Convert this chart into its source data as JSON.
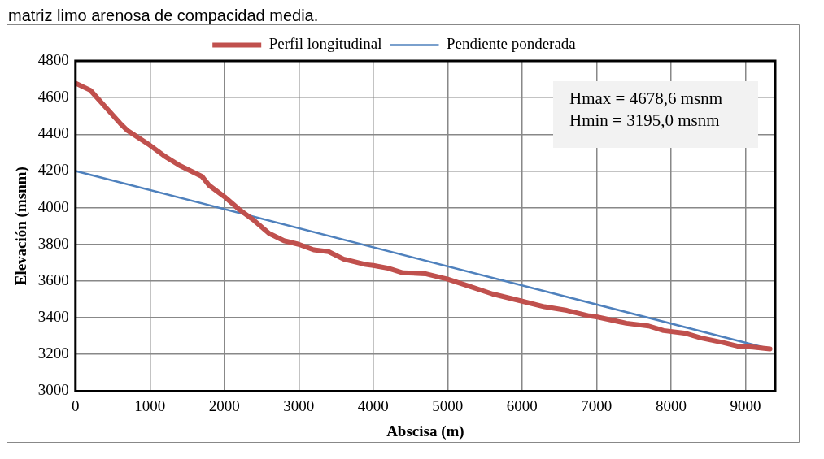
{
  "chart_data": {
    "type": "line",
    "annotations": [
      "matriz limo arenosa de compacidad media.",
      "Hmax = 4678,6 msnm",
      "Hmin = 3195,0 msnm"
    ],
    "xlabel": "Abscisa (m)",
    "ylabel": "Elevación (msnm)",
    "series": [
      {
        "name": "Perfil longitudinal",
        "color": "#c0504d",
        "x": [
          0,
          200,
          400,
          600,
          700,
          1000,
          1200,
          1400,
          1700,
          1800,
          2000,
          2200,
          2400,
          2600,
          2800,
          3000,
          3200,
          3400,
          3600,
          3900,
          4000,
          4200,
          4400,
          4700,
          5000,
          5300,
          5600,
          6000,
          6300,
          6600,
          6900,
          7000,
          7400,
          7700,
          7900,
          8200,
          8400,
          8700,
          8900,
          9100,
          9330
        ],
        "values": [
          4678.6,
          4640,
          4550,
          4460,
          4420,
          4340,
          4280,
          4230,
          4170,
          4120,
          4060,
          3990,
          3930,
          3860,
          3820,
          3800,
          3770,
          3760,
          3720,
          3690,
          3685,
          3670,
          3645,
          3640,
          3610,
          3570,
          3530,
          3490,
          3460,
          3440,
          3410,
          3405,
          3370,
          3355,
          3330,
          3315,
          3290,
          3265,
          3245,
          3240,
          3230
        ]
      },
      {
        "name": "Pendiente ponderada",
        "color": "#4f81bd",
        "x": [
          0,
          9330
        ],
        "values": [
          4200,
          3230
        ]
      }
    ],
    "xlim": [
      0,
      9400
    ],
    "xticks": [
      0,
      1000,
      2000,
      3000,
      4000,
      5000,
      6000,
      7000,
      8000,
      9000
    ],
    "ylim": [
      3000,
      4800
    ],
    "yticks": [
      3000,
      3200,
      3400,
      3600,
      3800,
      4000,
      4200,
      4400,
      4600,
      4800
    ],
    "grid": true,
    "legend": "top",
    "line_style": "solid",
    "marker": "none"
  }
}
